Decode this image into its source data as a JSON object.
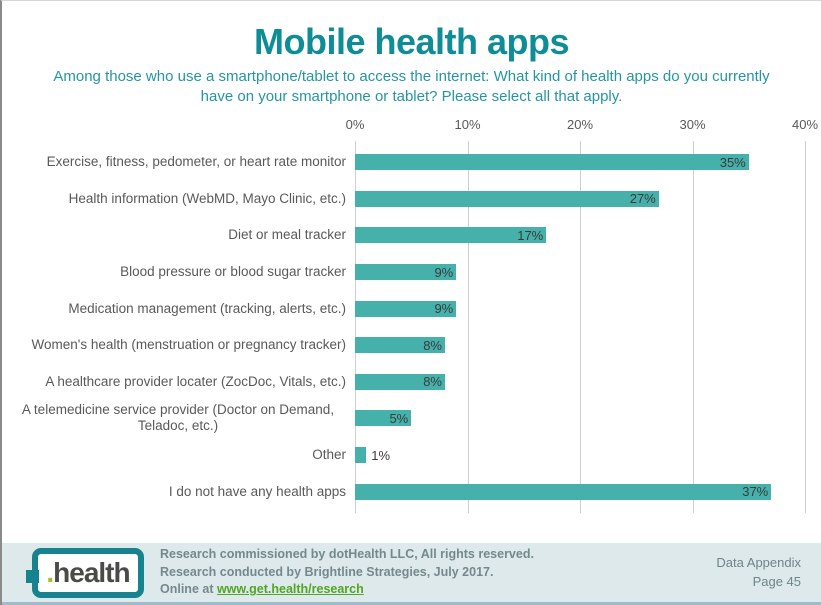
{
  "header": {
    "title": "Mobile health apps",
    "subtitle": "Among those who use a smartphone/tablet to access the internet: What kind of health apps do you currently have on your smartphone or tablet? Please select all that apply."
  },
  "chart_data": {
    "type": "bar",
    "orientation": "horizontal",
    "title": "Mobile health apps",
    "categories": [
      "Exercise, fitness, pedometer, or heart rate monitor",
      "Health information (WebMD, Mayo Clinic, etc.)",
      "Diet or meal tracker",
      "Blood pressure or blood sugar tracker",
      "Medication management (tracking, alerts, etc.)",
      "Women's health (menstruation or pregnancy tracker)",
      "A healthcare provider locater (ZocDoc, Vitals, etc.)",
      "A telemedicine service provider (Doctor on Demand, Teladoc, etc.)",
      "Other",
      "I do not have any health apps"
    ],
    "values": [
      35,
      27,
      17,
      9,
      9,
      8,
      8,
      5,
      1,
      37
    ],
    "x_ticks": [
      "0%",
      "10%",
      "20%",
      "30%",
      "40%"
    ],
    "xlim": [
      0,
      40
    ],
    "grid": true,
    "legend": false,
    "bar_color": "#45b1aa",
    "label_inside_threshold": 3
  },
  "footer": {
    "logo_dot": ".",
    "logo_word": "health",
    "credit_line1": "Research commissioned by dotHealth LLC, All rights reserved.",
    "credit_line2": "Research conducted by Brightline Strategies, July 2017.",
    "credit_line3_prefix": "Online at ",
    "credit_link": "www.get.health/research",
    "appendix_line1": "Data Appendix",
    "appendix_line2": "Page 45"
  },
  "colors": {
    "title_teal": "#0f8d97",
    "subtitle_teal": "#2596a1",
    "bar_teal": "#45b1aa",
    "footer_bg": "#dde9ea",
    "link_green": "#53a427",
    "logo_frame": "#17838e"
  }
}
